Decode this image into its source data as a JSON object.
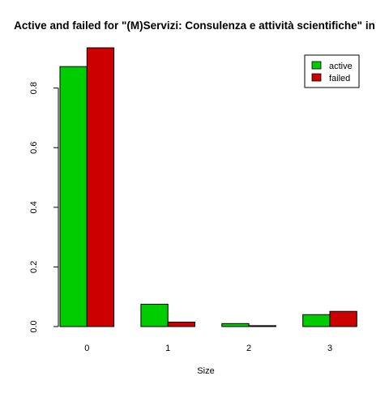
{
  "chart_data": {
    "type": "bar",
    "title": "Active and failed for \"(M)Servizi: Consulenza e attività scientifiche\" in",
    "xlabel": "Size",
    "ylabel": "",
    "categories": [
      "0",
      "1",
      "2",
      "3"
    ],
    "series": [
      {
        "name": "active",
        "color": "#00cd00",
        "values": [
          0.872,
          0.075,
          0.01,
          0.04
        ]
      },
      {
        "name": "failed",
        "color": "#cd0000",
        "values": [
          0.935,
          0.015,
          0.003,
          0.051
        ]
      }
    ],
    "ylim": [
      0,
      0.935
    ],
    "yticks": [
      "0.0",
      "0.2",
      "0.4",
      "0.6",
      "0.8"
    ],
    "grid": false,
    "legend": "top-right",
    "grouped": true
  }
}
